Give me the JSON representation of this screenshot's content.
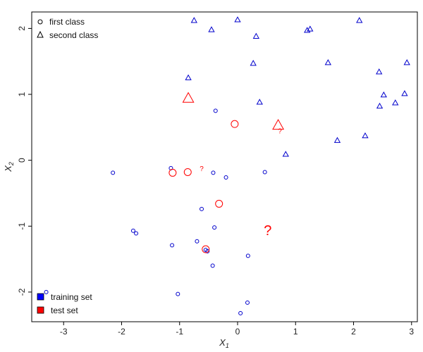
{
  "chart_data": {
    "type": "scatter",
    "title": "",
    "xlabel": "X",
    "xlabel_sub": "1",
    "ylabel": "X",
    "ylabel_sub": "2",
    "xlim": [
      -3.55,
      3.1
    ],
    "ylim": [
      -2.45,
      2.25
    ],
    "x_ticks": [
      -3,
      -2,
      -1,
      0,
      1,
      2,
      3
    ],
    "y_ticks": [
      -2,
      -1,
      0,
      1,
      2
    ],
    "grid": false,
    "legend_top": [
      {
        "label": "first class",
        "marker": "circle"
      },
      {
        "label": "second class",
        "marker": "triangle"
      }
    ],
    "legend_bottom": [
      {
        "label": "training set",
        "color": "#0000ff"
      },
      {
        "label": "test set",
        "color": "#ff0000"
      }
    ],
    "colors": {
      "training": "#0000cc",
      "test": "#ff0000"
    },
    "series": [
      {
        "name": "first class, training set",
        "marker": "circle",
        "color": "#0000cc",
        "x": [
          -3.3,
          -2.15,
          -1.8,
          -1.75,
          -1.15,
          -1.13,
          -1.03,
          -0.7,
          -0.62,
          -0.55,
          -0.52,
          -0.43,
          -0.42,
          -0.4,
          -0.38,
          -0.2,
          0.05,
          0.17,
          0.18,
          0.47
        ],
        "y": [
          -2.0,
          -0.19,
          -1.07,
          -1.11,
          -0.12,
          -1.29,
          -2.03,
          -1.23,
          -0.74,
          -1.36,
          -1.38,
          -1.6,
          -0.19,
          -1.02,
          0.75,
          -0.26,
          -2.32,
          -2.16,
          -1.45,
          -0.18
        ]
      },
      {
        "name": "second class, training set",
        "marker": "triangle",
        "color": "#0000cc",
        "x": [
          -0.85,
          -0.75,
          -0.45,
          0.0,
          0.27,
          0.32,
          0.38,
          0.83,
          1.2,
          1.25,
          1.56,
          1.72,
          2.1,
          2.2,
          2.44,
          2.45,
          2.52,
          2.72,
          2.88,
          2.92
        ],
        "y": [
          1.25,
          2.12,
          1.98,
          2.13,
          1.47,
          1.88,
          0.88,
          0.09,
          1.97,
          1.99,
          1.48,
          0.3,
          2.12,
          0.37,
          1.34,
          0.82,
          0.99,
          0.87,
          1.01,
          1.48
        ]
      },
      {
        "name": "first class, test set",
        "marker": "circle",
        "color": "#ff0000",
        "x": [
          -1.12,
          -0.86,
          -0.55,
          -0.32,
          -0.05
        ],
        "y": [
          -0.19,
          -0.18,
          -1.35,
          -0.66,
          0.55
        ]
      },
      {
        "name": "second class, test set",
        "marker": "triangle",
        "color": "#ff0000",
        "x": [
          -0.85,
          0.7
        ],
        "y": [
          0.94,
          0.53
        ]
      }
    ],
    "annotations": [
      {
        "text": "?",
        "x": -0.62,
        "y": -0.12,
        "size": "small"
      },
      {
        "text": "?",
        "x": 0.73,
        "y": 0.45,
        "size": "small"
      },
      {
        "text": "?",
        "x": 0.52,
        "y": -1.05,
        "size": "large"
      }
    ]
  }
}
